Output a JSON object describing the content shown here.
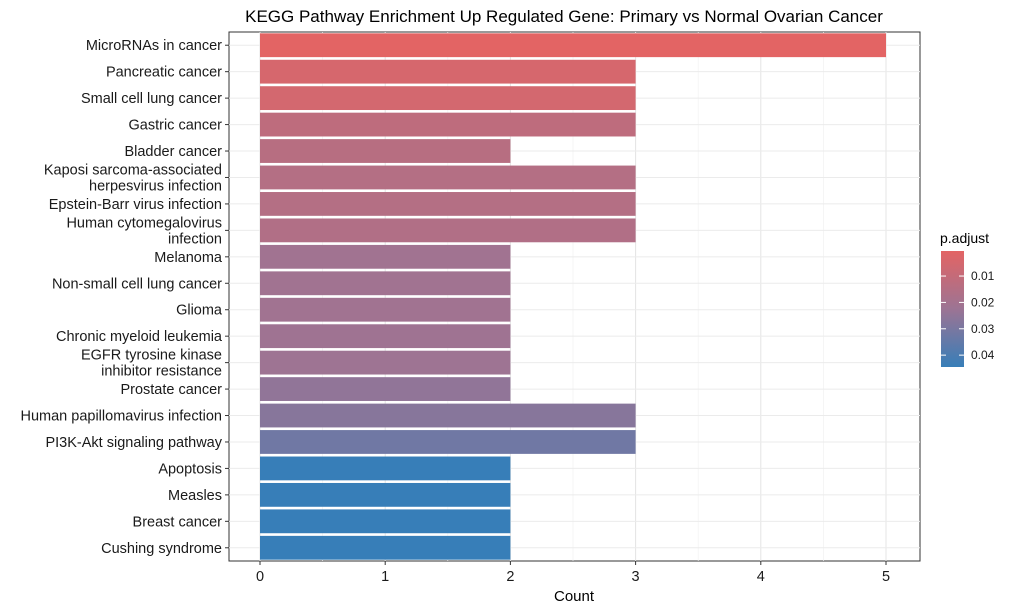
{
  "chart_data": {
    "type": "bar",
    "orientation": "horizontal",
    "title": "KEGG Pathway Enrichment Up Regulated Gene: Primary vs Normal Ovarian Cancer",
    "xlabel": "Count",
    "ylabel": "",
    "xlim": [
      0,
      5.3
    ],
    "xticks": [
      "0",
      "1",
      "2",
      "3",
      "4",
      "5"
    ],
    "grid": true,
    "legend_position": "right",
    "categories": [
      [
        "MicroRNAs in cancer"
      ],
      [
        "Pancreatic cancer"
      ],
      [
        "Small cell lung cancer"
      ],
      [
        "Gastric cancer"
      ],
      [
        "Bladder cancer"
      ],
      [
        "Kaposi sarcoma-associated",
        "herpesvirus infection"
      ],
      [
        "Epstein-Barr virus infection"
      ],
      [
        "Human cytomegalovirus",
        "infection"
      ],
      [
        "Melanoma"
      ],
      [
        "Non-small cell lung cancer"
      ],
      [
        "Glioma"
      ],
      [
        "Chronic myeloid leukemia"
      ],
      [
        "EGFR tyrosine kinase",
        "inhibitor resistance"
      ],
      [
        "Prostate cancer"
      ],
      [
        "Human papillomavirus infection"
      ],
      [
        "PI3K-Akt signaling pathway"
      ],
      [
        "Apoptosis"
      ],
      [
        "Measles"
      ],
      [
        "Breast cancer"
      ],
      [
        "Cushing syndrome"
      ]
    ],
    "values": [
      5,
      3,
      3,
      3,
      2,
      3,
      3,
      3,
      2,
      2,
      2,
      2,
      2,
      2,
      3,
      3,
      2,
      2,
      2,
      2
    ],
    "p_adjust": [
      0.0005,
      0.0045,
      0.0055,
      0.012,
      0.014,
      0.015,
      0.015,
      0.016,
      0.021,
      0.021,
      0.021,
      0.0215,
      0.022,
      0.025,
      0.027,
      0.032,
      0.0445,
      0.0445,
      0.0445,
      0.0445
    ],
    "legend": {
      "title": "p.adjust",
      "ticks": [
        0.01,
        0.02,
        0.03,
        0.04
      ],
      "tick_labels": [
        "0.01",
        "0.02",
        "0.03",
        "0.04"
      ],
      "range": [
        0.0005,
        0.0445
      ],
      "color_low": "#e36464",
      "color_high": "#377eb8"
    }
  }
}
